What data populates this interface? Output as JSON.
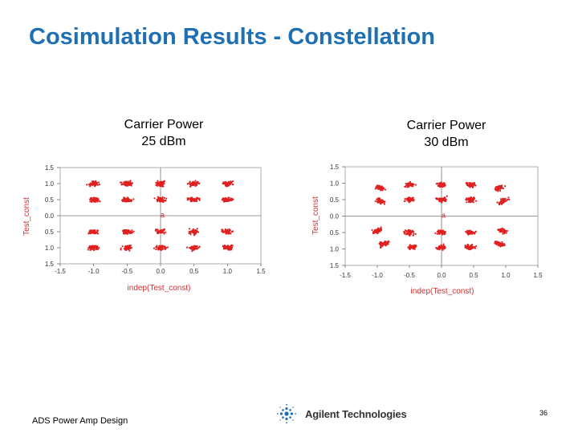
{
  "slide": {
    "title": "Cosimulation Results - Constellation",
    "footer_left": "ADS Power Amp Design",
    "brand": "Agilent Technologies",
    "page_number": "36"
  },
  "colors": {
    "title": "#1f6fb3",
    "points": "#e02020",
    "axes": "#555555"
  },
  "chart_data": [
    {
      "type": "scatter",
      "title_lines": [
        "Carrier Power",
        "25 dBm"
      ],
      "xlabel": "indep(Test_const)",
      "ylabel": "Test_const",
      "xlim": [
        -1.5,
        1.5
      ],
      "ylim": [
        -1.5,
        1.5
      ],
      "x_ticks": [
        "-1.5",
        "-1.0",
        "-0.5",
        "0.0",
        "0.5",
        "1.0",
        "1.5"
      ],
      "y_ticks": [
        "1.5",
        "1.0",
        "0.5",
        "0.0",
        "0.5",
        "1.0",
        "1.5"
      ],
      "grid": false,
      "marker_label": "a",
      "marker": [
        0.0,
        0.0
      ],
      "clusters": [
        {
          "x": -1.0,
          "y": 1.0
        },
        {
          "x": -0.5,
          "y": 1.0
        },
        {
          "x": 0.0,
          "y": 1.0
        },
        {
          "x": 0.5,
          "y": 1.0
        },
        {
          "x": 1.0,
          "y": 1.0
        },
        {
          "x": -1.0,
          "y": 0.5
        },
        {
          "x": -0.5,
          "y": 0.5
        },
        {
          "x": 0.0,
          "y": 0.5
        },
        {
          "x": 0.5,
          "y": 0.5
        },
        {
          "x": 1.0,
          "y": 0.5
        },
        {
          "x": -1.0,
          "y": -0.5
        },
        {
          "x": -0.5,
          "y": -0.5
        },
        {
          "x": 0.0,
          "y": -0.5
        },
        {
          "x": 0.5,
          "y": -0.5
        },
        {
          "x": 1.0,
          "y": -0.5
        },
        {
          "x": -1.0,
          "y": -1.0
        },
        {
          "x": -0.5,
          "y": -1.0
        },
        {
          "x": 0.0,
          "y": -1.0
        },
        {
          "x": 0.5,
          "y": -1.0
        },
        {
          "x": 1.0,
          "y": -1.0
        }
      ]
    },
    {
      "type": "scatter",
      "title_lines": [
        "Carrier Power",
        "30 dBm"
      ],
      "xlabel": "indep(Test_const)",
      "ylabel": "Test_const",
      "xlim": [
        -1.5,
        1.5
      ],
      "ylim": [
        -1.5,
        1.5
      ],
      "x_ticks": [
        "-1.5",
        "-1.0",
        "-0.5",
        "0.0",
        "0.5",
        "1.0",
        "1.5"
      ],
      "y_ticks": [
        "1.5",
        "1.0",
        "0.5",
        "0.0",
        "0.5",
        "1.0",
        "1.5"
      ],
      "grid": false,
      "marker_label": "a",
      "marker": [
        0.0,
        0.0
      ],
      "clusters": [
        {
          "x": -0.95,
          "y": 0.85
        },
        {
          "x": -0.5,
          "y": 0.95
        },
        {
          "x": 0.0,
          "y": 0.95
        },
        {
          "x": 0.45,
          "y": 0.95
        },
        {
          "x": 0.9,
          "y": 0.85
        },
        {
          "x": -0.95,
          "y": 0.45
        },
        {
          "x": -0.5,
          "y": 0.5
        },
        {
          "x": 0.0,
          "y": 0.5
        },
        {
          "x": 0.45,
          "y": 0.5
        },
        {
          "x": 0.95,
          "y": 0.45
        },
        {
          "x": -1.0,
          "y": -0.45
        },
        {
          "x": -0.5,
          "y": -0.5
        },
        {
          "x": 0.0,
          "y": -0.5
        },
        {
          "x": 0.45,
          "y": -0.5
        },
        {
          "x": 0.95,
          "y": -0.45
        },
        {
          "x": -0.9,
          "y": -0.85
        },
        {
          "x": -0.45,
          "y": -0.95
        },
        {
          "x": 0.0,
          "y": -0.95
        },
        {
          "x": 0.45,
          "y": -0.95
        },
        {
          "x": 0.9,
          "y": -0.85
        }
      ]
    }
  ]
}
